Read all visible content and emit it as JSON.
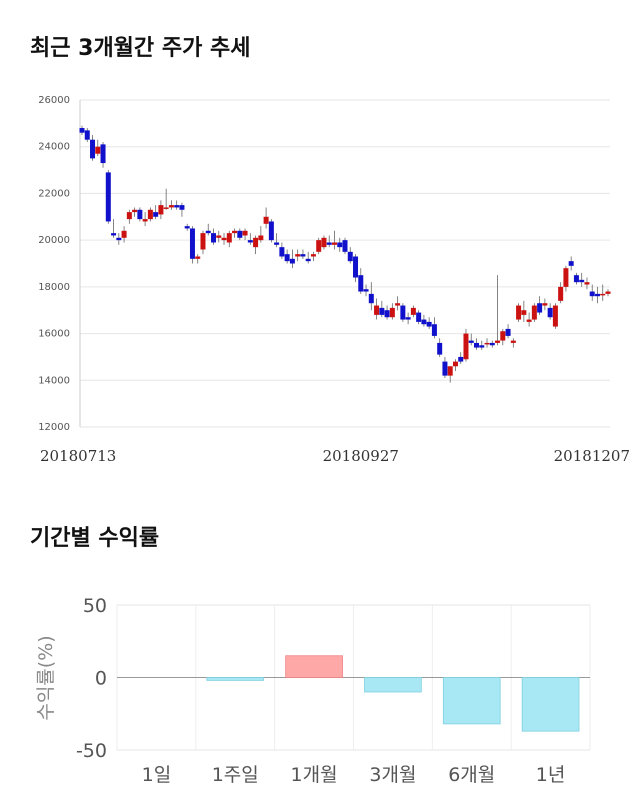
{
  "section1": {
    "title": "최근 3개월간 주가 추세"
  },
  "section2": {
    "title": "기간별 수익률"
  },
  "chart_data": [
    {
      "type": "candlestick",
      "ylim": [
        12000,
        26000
      ],
      "yticks": [
        "26000",
        "24000",
        "22000",
        "20000",
        "18000",
        "16000",
        "14000",
        "12000"
      ],
      "xtick_labels": [
        "20180713",
        "20180927",
        "20181207"
      ],
      "xtick_index": [
        0,
        53,
        101
      ],
      "grid": true,
      "up_color": "#cc1111",
      "down_color": "#1111cc",
      "candles": [
        [
          24800,
          24900,
          24500,
          24600
        ],
        [
          24700,
          24800,
          24200,
          24300
        ],
        [
          24300,
          24500,
          23400,
          23500
        ],
        [
          23700,
          24300,
          23600,
          24000
        ],
        [
          24100,
          24200,
          23100,
          23300
        ],
        [
          22900,
          23000,
          20700,
          20800
        ],
        [
          20300,
          20900,
          20100,
          20200
        ],
        [
          20100,
          20300,
          19800,
          20000
        ],
        [
          20100,
          20600,
          19900,
          20400
        ],
        [
          20900,
          21300,
          20700,
          21200
        ],
        [
          21200,
          21400,
          21000,
          21300
        ],
        [
          21300,
          21400,
          20800,
          20900
        ],
        [
          20800,
          21200,
          20600,
          20900
        ],
        [
          20900,
          21400,
          20800,
          21300
        ],
        [
          21200,
          21500,
          20900,
          21000
        ],
        [
          21100,
          21700,
          20900,
          21500
        ],
        [
          21400,
          22200,
          21300,
          21400
        ],
        [
          21400,
          21700,
          21300,
          21500
        ],
        [
          21500,
          21700,
          21300,
          21400
        ],
        [
          21500,
          21600,
          21000,
          21300
        ],
        [
          20600,
          20700,
          20400,
          20500
        ],
        [
          20500,
          20600,
          19000,
          19200
        ],
        [
          19200,
          19400,
          19000,
          19300
        ],
        [
          19600,
          20400,
          19400,
          20300
        ],
        [
          20400,
          20700,
          20200,
          20300
        ],
        [
          20300,
          20500,
          19800,
          19900
        ],
        [
          20100,
          20400,
          19900,
          20200
        ],
        [
          20000,
          20300,
          19800,
          20100
        ],
        [
          19900,
          20400,
          19700,
          20300
        ],
        [
          20300,
          20500,
          20100,
          20400
        ],
        [
          20400,
          20500,
          20000,
          20100
        ],
        [
          20200,
          20500,
          20000,
          20400
        ],
        [
          20000,
          20300,
          19800,
          19900
        ],
        [
          19700,
          20200,
          19400,
          20100
        ],
        [
          20000,
          20600,
          19900,
          20200
        ],
        [
          20700,
          21400,
          20500,
          21000
        ],
        [
          20800,
          20900,
          19900,
          20000
        ],
        [
          19900,
          20300,
          19700,
          19800
        ],
        [
          19700,
          19900,
          19200,
          19300
        ],
        [
          19400,
          19600,
          19000,
          19100
        ],
        [
          19200,
          19600,
          18800,
          19000
        ],
        [
          19300,
          19600,
          19100,
          19400
        ],
        [
          19400,
          19600,
          19200,
          19300
        ],
        [
          19200,
          19500,
          19000,
          19100
        ],
        [
          19300,
          19500,
          19100,
          19400
        ],
        [
          19500,
          20100,
          19400,
          20000
        ],
        [
          19700,
          20200,
          19600,
          20100
        ],
        [
          19900,
          20200,
          19700,
          19800
        ],
        [
          19800,
          20400,
          19600,
          19900
        ],
        [
          19900,
          20100,
          19500,
          19700
        ],
        [
          20000,
          20100,
          19400,
          19500
        ],
        [
          19500,
          19700,
          19000,
          19100
        ],
        [
          19300,
          19400,
          18200,
          18400
        ],
        [
          18500,
          18800,
          17700,
          17800
        ],
        [
          17900,
          18100,
          17600,
          17800
        ],
        [
          17700,
          18200,
          17000,
          17300
        ],
        [
          16800,
          17500,
          16600,
          17200
        ],
        [
          17100,
          17400,
          16700,
          16800
        ],
        [
          17000,
          17200,
          16600,
          16700
        ],
        [
          16700,
          17300,
          16600,
          17100
        ],
        [
          17200,
          17600,
          17000,
          17300
        ],
        [
          17200,
          17300,
          16500,
          16600
        ],
        [
          16700,
          16900,
          16400,
          16600
        ],
        [
          16800,
          17200,
          16700,
          17100
        ],
        [
          16900,
          17000,
          16400,
          16500
        ],
        [
          16600,
          16800,
          16300,
          16400
        ],
        [
          16500,
          16700,
          16200,
          16300
        ],
        [
          16400,
          16700,
          15800,
          15900
        ],
        [
          15600,
          15800,
          15000,
          15100
        ],
        [
          14800,
          15000,
          14100,
          14200
        ],
        [
          14200,
          14600,
          13900,
          14600
        ],
        [
          14600,
          14900,
          14400,
          14800
        ],
        [
          15000,
          15200,
          14700,
          14800
        ],
        [
          14900,
          16200,
          14800,
          16000
        ],
        [
          15700,
          16000,
          15500,
          15600
        ],
        [
          15600,
          15800,
          15300,
          15400
        ],
        [
          15500,
          15700,
          15300,
          15400
        ],
        [
          15600,
          15800,
          15400,
          15600
        ],
        [
          15600,
          15700,
          15400,
          15500
        ],
        [
          15600,
          18500,
          15500,
          15700
        ],
        [
          15700,
          16200,
          15500,
          16100
        ],
        [
          16200,
          16400,
          15800,
          15900
        ],
        [
          15600,
          15800,
          15400,
          15700
        ],
        [
          16600,
          17300,
          16500,
          17200
        ],
        [
          16800,
          17400,
          16500,
          17000
        ],
        [
          16500,
          16900,
          16300,
          16600
        ],
        [
          16600,
          17300,
          16500,
          17200
        ],
        [
          17300,
          17600,
          16800,
          16900
        ],
        [
          17200,
          17500,
          17000,
          17300
        ],
        [
          17100,
          17300,
          16600,
          16700
        ],
        [
          16300,
          17300,
          16200,
          17200
        ],
        [
          17400,
          18200,
          17300,
          18000
        ],
        [
          18000,
          18900,
          17800,
          18800
        ],
        [
          19100,
          19300,
          18700,
          18900
        ],
        [
          18500,
          18600,
          18100,
          18200
        ],
        [
          18300,
          18600,
          18000,
          18200
        ],
        [
          18100,
          18400,
          17900,
          18200
        ],
        [
          17800,
          18100,
          17400,
          17600
        ],
        [
          17700,
          18000,
          17300,
          17600
        ],
        [
          17700,
          18100,
          17400,
          17700
        ],
        [
          17700,
          17900,
          17600,
          17800
        ]
      ]
    },
    {
      "type": "bar",
      "categories": [
        "1일",
        "1주일",
        "1개월",
        "3개월",
        "6개월",
        "1년"
      ],
      "values": [
        0,
        -2,
        15,
        -10,
        -32,
        -37
      ],
      "ylim": [
        -50,
        50
      ],
      "yticks": [
        "50",
        "0",
        "-50"
      ],
      "ylabel": "수익률(%)",
      "grid": true,
      "pos_color": "#ffa8a8",
      "neg_color": "#a8e8f4"
    }
  ]
}
